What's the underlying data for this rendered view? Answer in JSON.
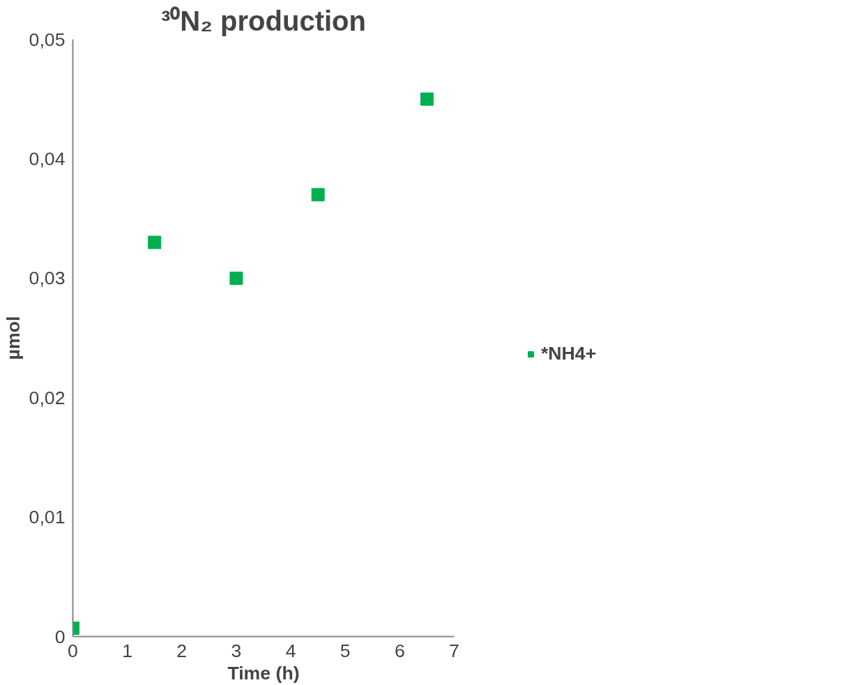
{
  "chart_data": {
    "type": "scatter",
    "title": "³⁰N₂ production",
    "xlabel": "Time (h)",
    "ylabel": "µmol",
    "x": [
      0,
      1.5,
      3,
      4.5,
      6.5
    ],
    "series": [
      {
        "name": "*NH4+",
        "color": "#00b050",
        "values": [
          0.0007,
          0.033,
          0.03,
          0.037,
          0.045
        ]
      }
    ],
    "xlim": [
      0,
      7
    ],
    "ylim": [
      0,
      0.05
    ],
    "xticks": [
      0,
      1,
      2,
      3,
      4,
      5,
      6,
      7
    ],
    "yticks": [
      {
        "value": 0,
        "label": "0"
      },
      {
        "value": 0.01,
        "label": "0,01"
      },
      {
        "value": 0.02,
        "label": "0,02"
      },
      {
        "value": 0.03,
        "label": "0,03"
      },
      {
        "value": 0.04,
        "label": "0,04"
      },
      {
        "value": 0.05,
        "label": "0,05"
      }
    ],
    "marker": "square",
    "grid": false,
    "legend": "right"
  }
}
